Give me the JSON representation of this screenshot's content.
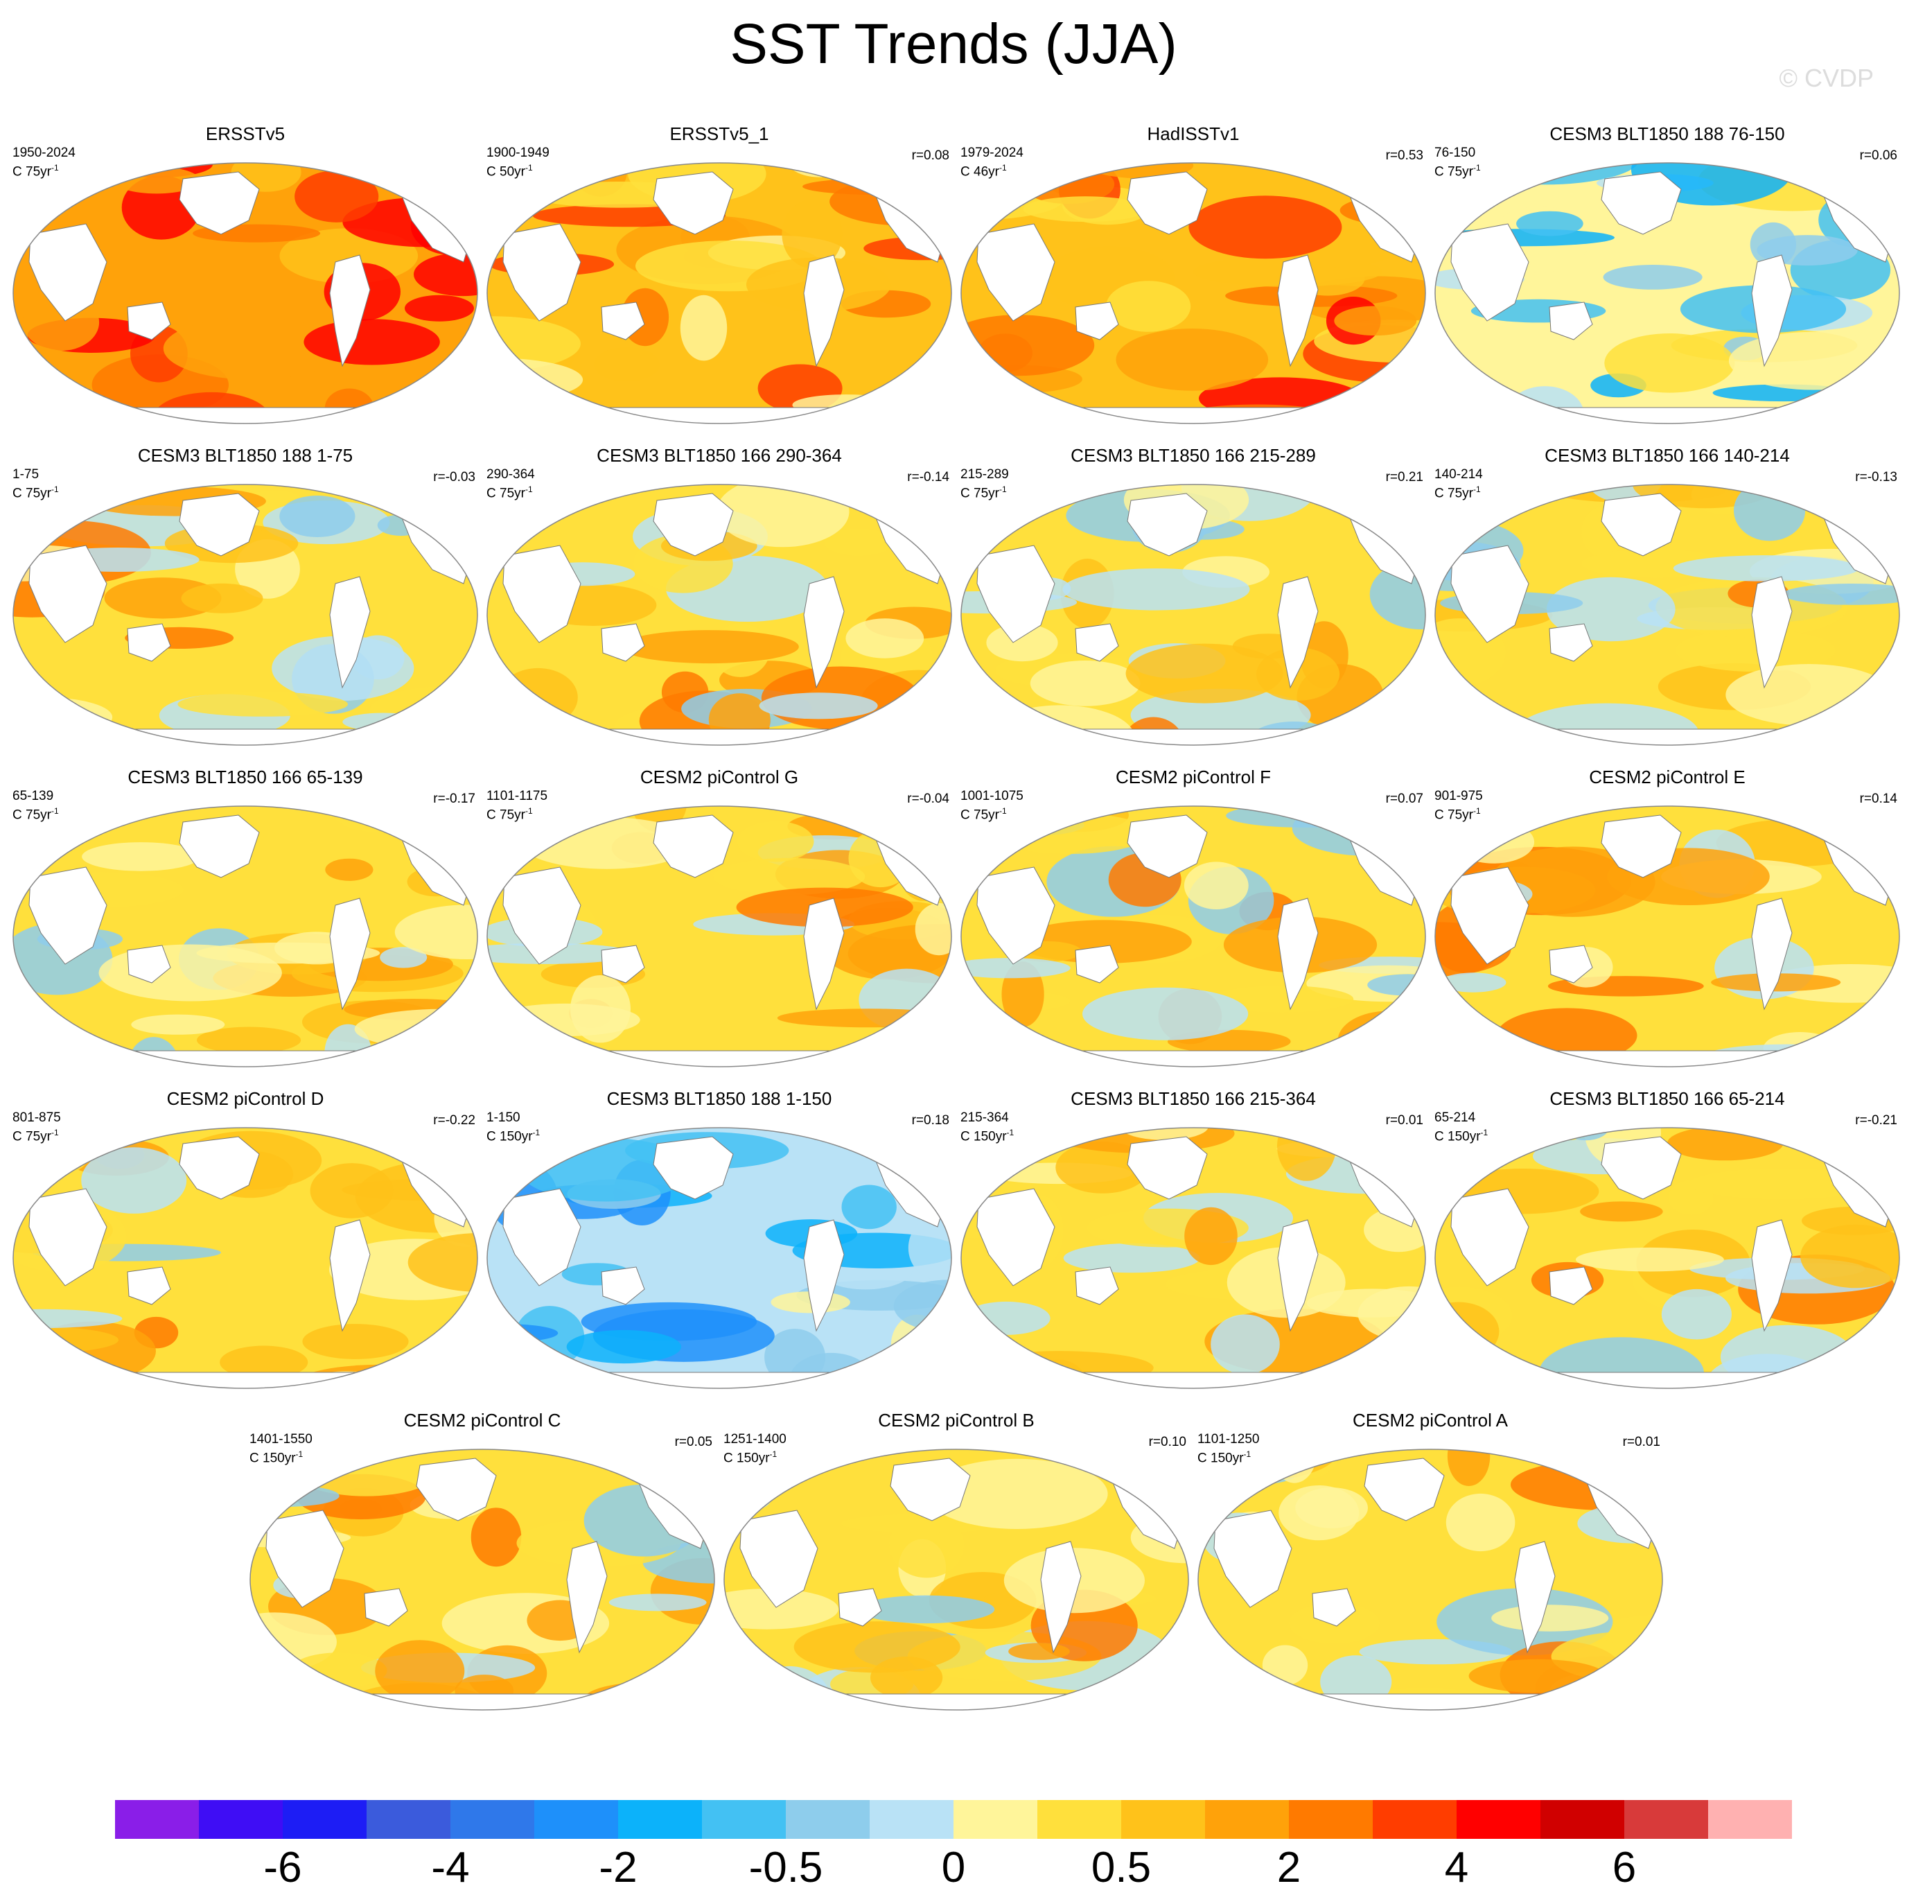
{
  "title": "SST Trends (JJA)",
  "watermark": "© CVDP",
  "chart_data": {
    "type": "map-panels",
    "title": "SST Trends (JJA)",
    "panels": [
      {
        "name": "ERSSTv5",
        "period": "1950-2024",
        "units": "C 75yr",
        "r": "",
        "tone": 0.78
      },
      {
        "name": "ERSSTv5_1",
        "period": "1900-1949",
        "units": "C 50yr",
        "r": "r=0.08",
        "tone": 0.62
      },
      {
        "name": "HadISSTv1",
        "period": "1979-2024",
        "units": "C 46yr",
        "r": "r=0.53",
        "tone": 0.72
      },
      {
        "name": "CESM3 BLT1850 188 76-150",
        "period": "76-150",
        "units": "C 75yr",
        "r": "r=0.06",
        "tone": 0.28
      },
      {
        "name": "CESM3 BLT1850 188 1-75",
        "period": "1-75",
        "units": "C 75yr",
        "r": "r=-0.03",
        "tone": 0.48
      },
      {
        "name": "CESM3 BLT1850 166 290-364",
        "period": "290-364",
        "units": "C 75yr",
        "r": "r=-0.14",
        "tone": 0.5
      },
      {
        "name": "CESM3 BLT1850 166 215-289",
        "period": "215-289",
        "units": "C 75yr",
        "r": "r=0.21",
        "tone": 0.44
      },
      {
        "name": "CESM3 BLT1850 166 140-214",
        "period": "140-214",
        "units": "C 75yr",
        "r": "r=-0.13",
        "tone": 0.42
      },
      {
        "name": "CESM3 BLT1850 166 65-139",
        "period": "65-139",
        "units": "C 75yr",
        "r": "r=-0.17",
        "tone": 0.42
      },
      {
        "name": "CESM2 piControl G",
        "period": "1101-1175",
        "units": "C 75yr",
        "r": "r=-0.04",
        "tone": 0.52
      },
      {
        "name": "CESM2 piControl F",
        "period": "1001-1075",
        "units": "C 75yr",
        "r": "r=0.07",
        "tone": 0.46
      },
      {
        "name": "CESM2 piControl E",
        "period": "901-975",
        "units": "C 75yr",
        "r": "r=0.14",
        "tone": 0.52
      },
      {
        "name": "CESM2 piControl D",
        "period": "801-875",
        "units": "C 75yr",
        "r": "r=-0.22",
        "tone": 0.48
      },
      {
        "name": "CESM3 BLT1850 188 1-150",
        "period": "1-150",
        "units": "C 150yr",
        "r": "r=0.18",
        "tone": 0.24
      },
      {
        "name": "CESM3 BLT1850 166 215-364",
        "period": "215-364",
        "units": "C 150yr",
        "r": "r=0.01",
        "tone": 0.56
      },
      {
        "name": "CESM3 BLT1850 166 65-214",
        "period": "65-214",
        "units": "C 150yr",
        "r": "r=-0.21",
        "tone": 0.52
      },
      {
        "name": "CESM2 piControl C",
        "period": "1401-1550",
        "units": "C 150yr",
        "r": "r=0.05",
        "tone": 0.52
      },
      {
        "name": "CESM2 piControl B",
        "period": "1251-1400",
        "units": "C 150yr",
        "r": "r=0.10",
        "tone": 0.53
      },
      {
        "name": "CESM2 piControl A",
        "period": "1101-1250",
        "units": "C 150yr",
        "r": "r=0.01",
        "tone": 0.5
      }
    ],
    "colorbar": {
      "colors": [
        "#8a1ee8",
        "#3f0df5",
        "#1d1df5",
        "#3b5bdc",
        "#2f78ea",
        "#1e90fa",
        "#0cb2fa",
        "#43c1f3",
        "#8ecdec",
        "#b9e2f6",
        "#fff59a",
        "#ffe03c",
        "#ffc21a",
        "#ffa20a",
        "#ff7a00",
        "#ff3d00",
        "#ff0000",
        "#d00000",
        "#d83a3a",
        "#ffb1b1"
      ],
      "tick_labels": [
        "-6",
        "-4",
        "-2",
        "-0.5",
        "0",
        "0.5",
        "2",
        "4",
        "6"
      ]
    },
    "legend": "bottom colorbar"
  }
}
